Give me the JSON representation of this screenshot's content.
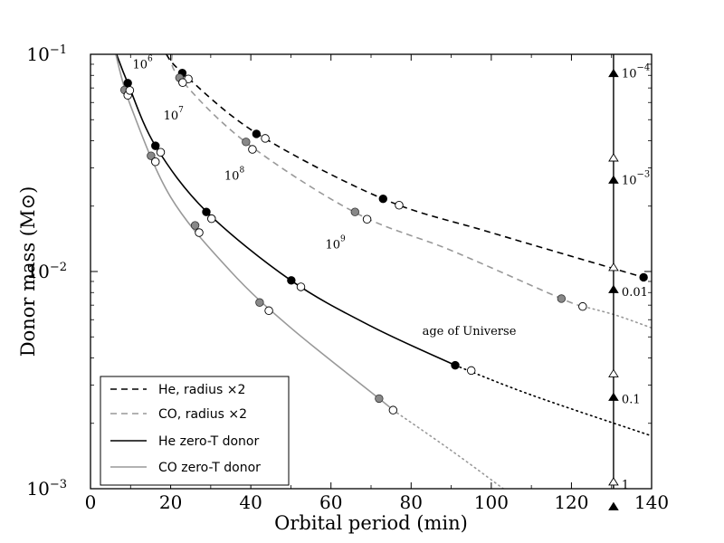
{
  "chart_data": {
    "type": "line",
    "xlabel": "Orbital period (min)",
    "ylabel": "Donor mass (M⊙)",
    "xlim": [
      0,
      140
    ],
    "ylim": [
      0.001,
      0.1
    ],
    "yscale": "log",
    "x_ticks": [
      0,
      20,
      40,
      60,
      80,
      100,
      120,
      140
    ],
    "y_ticks": [
      {
        "value": 0.1,
        "base": "10",
        "exp": "−1"
      },
      {
        "value": 0.01,
        "base": "10",
        "exp": "−2"
      },
      {
        "value": 0.001,
        "base": "10",
        "exp": "−3"
      }
    ],
    "series": [
      {
        "id": "he_radius2",
        "name": "He, radius ×2",
        "color": "#000000",
        "dash": "dashed",
        "points": [
          [
            18.9,
            0.1
          ],
          [
            23,
            0.082
          ],
          [
            41.5,
            0.0432
          ],
          [
            73,
            0.0216
          ],
          [
            100,
            0.0151
          ],
          [
            138,
            0.0094
          ]
        ],
        "filled_markers": [
          [
            22.9,
            0.082
          ],
          [
            41.4,
            0.043
          ],
          [
            73,
            0.0216
          ],
          [
            138,
            0.0094
          ]
        ],
        "open_markers": [
          [
            24.4,
            0.077
          ],
          [
            43.6,
            0.041
          ],
          [
            77,
            0.0202
          ]
        ]
      },
      {
        "id": "co_radius2",
        "name": "CO, radius ×2",
        "color": "#999999",
        "dash": "dashed",
        "points": [
          [
            20.3,
            0.1
          ],
          [
            22.2,
            0.078
          ],
          [
            38.7,
            0.0394
          ],
          [
            66,
            0.0187
          ],
          [
            90,
            0.0125
          ],
          [
            117.5,
            0.0075
          ],
          [
            123,
            0.0069
          ]
        ],
        "extension": [
          [
            123,
            0.0069
          ],
          [
            131,
            0.0063
          ],
          [
            140,
            0.0055
          ]
        ],
        "gray_markers": [
          [
            22.2,
            0.078
          ],
          [
            38.8,
            0.0395
          ],
          [
            66,
            0.0188
          ],
          [
            117.5,
            0.0075
          ]
        ],
        "open_markers": [
          [
            23,
            0.0741
          ],
          [
            40.4,
            0.0365
          ],
          [
            69,
            0.0174
          ],
          [
            122.8,
            0.0069
          ]
        ]
      },
      {
        "id": "he_zero_t",
        "name": "He zero-T donor",
        "color": "#000000",
        "dash": "solid",
        "points": [
          [
            6.5,
            0.1
          ],
          [
            9.3,
            0.0737
          ],
          [
            16.2,
            0.0379
          ],
          [
            28.9,
            0.0189
          ],
          [
            50,
            0.0091
          ],
          [
            70,
            0.0056
          ],
          [
            91,
            0.0037
          ]
        ],
        "extension": [
          [
            91,
            0.0037
          ],
          [
            110,
            0.0027
          ],
          [
            140,
            0.00175
          ]
        ],
        "filled_markers": [
          [
            9.3,
            0.0737
          ],
          [
            16.2,
            0.0379
          ],
          [
            28.9,
            0.0188
          ],
          [
            50.1,
            0.0091
          ],
          [
            91,
            0.0037
          ]
        ],
        "gray_markers": [
          [
            8.5,
            0.0685
          ],
          [
            15.1,
            0.0341
          ],
          [
            26.1,
            0.0163
          ]
        ],
        "open_markers": [
          [
            9.3,
            0.0648
          ],
          [
            9.8,
            0.0682
          ],
          [
            16.2,
            0.032
          ],
          [
            17.5,
            0.0354
          ],
          [
            27.1,
            0.0151
          ],
          [
            30.2,
            0.0175
          ],
          [
            52.5,
            0.0085
          ],
          [
            95,
            0.0035
          ]
        ]
      },
      {
        "id": "co_zero_t",
        "name": "CO zero-T donor",
        "color": "#999999",
        "dash": "solid",
        "points": [
          [
            6.3,
            0.1
          ],
          [
            10,
            0.058
          ],
          [
            20,
            0.022
          ],
          [
            35,
            0.01
          ],
          [
            50,
            0.0055
          ],
          [
            72,
            0.0026
          ],
          [
            75.5,
            0.0023
          ]
        ],
        "extension": [
          [
            75.5,
            0.0023
          ],
          [
            90,
            0.0015
          ],
          [
            103,
            0.001
          ]
        ],
        "gray_markers": [
          [
            42.2,
            0.0072
          ],
          [
            72,
            0.0026
          ]
        ],
        "open_markers": [
          [
            44.5,
            0.0066
          ],
          [
            75.5,
            0.0023
          ]
        ]
      }
    ],
    "age_axis": {
      "x": 130.5,
      "filled_triangles": [
        0.082,
        0.0265,
        0.0083,
        0.00265,
        0.00083
      ],
      "open_triangles": [
        0.0335,
        0.0105,
        0.0034,
        0.00108
      ],
      "top_triangle": 0.0011,
      "labels": [
        {
          "value": 0.082,
          "base": "10",
          "exp": "−4",
          "text": ""
        },
        {
          "value": 0.0265,
          "base": "10",
          "exp": "−3",
          "text": ""
        },
        {
          "value": 0.0081,
          "base": "",
          "exp": "",
          "text": "0.01"
        },
        {
          "value": 0.0026,
          "base": "",
          "exp": "",
          "text": "0.1"
        },
        {
          "value": 0.00105,
          "base": "",
          "exp": "",
          "text": "1"
        }
      ]
    },
    "age_labels": [
      {
        "x": 10.5,
        "y": 0.086,
        "base": "10",
        "exp": "6"
      },
      {
        "x": 18.2,
        "y": 0.05,
        "base": "10",
        "exp": "7"
      },
      {
        "x": 33.4,
        "y": 0.0265,
        "base": "10",
        "exp": "8"
      },
      {
        "x": 58.6,
        "y": 0.0128,
        "base": "10",
        "exp": "9"
      }
    ],
    "annotation": {
      "text": "age of Universe",
      "x": 94.5,
      "y": 0.0051
    },
    "legend_position": "lower-left"
  }
}
